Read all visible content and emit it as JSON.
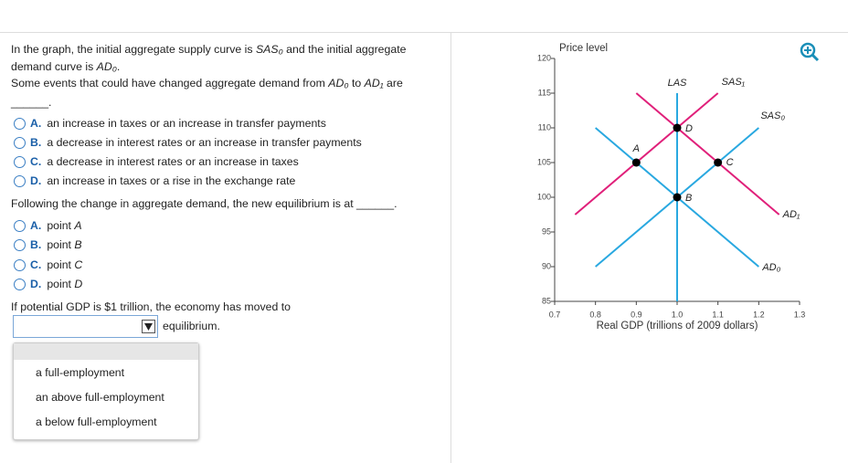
{
  "question1": {
    "intro": [
      "In the graph, the initial aggregate supply curve is ",
      "SAS₀",
      " and the initial aggregate demand curve is ",
      "AD₀",
      "."
    ],
    "stem": [
      "Some events that could have changed aggregate demand from ",
      "AD₀",
      " to ",
      "AD₁",
      " are"
    ],
    "blank": "______.",
    "options": [
      {
        "letter": "A.",
        "text": [
          "an increase in taxes or an increase in transfer payments"
        ]
      },
      {
        "letter": "B.",
        "text": [
          "a decrease in interest rates or an increase in transfer payments"
        ]
      },
      {
        "letter": "C.",
        "text": [
          "a decrease in interest rates or an increase in taxes"
        ]
      },
      {
        "letter": "D.",
        "text": [
          "an increase in taxes or a rise in the exchange rate"
        ]
      }
    ]
  },
  "question2": {
    "stem": [
      "Following the change in aggregate demand, the new equilibrium is at "
    ],
    "blank": "______.",
    "options": [
      {
        "letter": "A.",
        "text": [
          "point ",
          "A"
        ]
      },
      {
        "letter": "B.",
        "text": [
          "point ",
          "B"
        ]
      },
      {
        "letter": "C.",
        "text": [
          "point ",
          "C"
        ]
      },
      {
        "letter": "D.",
        "text": [
          "point ",
          "D"
        ]
      }
    ]
  },
  "question3": {
    "stem": "If potential GDP is $1 trillion, the economy has moved to",
    "suffix": "equilibrium.",
    "dropdown_options": [
      "a full-employment",
      "an above full-employment",
      "a below full-employment"
    ]
  },
  "chart_data": {
    "type": "line",
    "ylabel": "Price level",
    "xlabel": "Real GDP (trillions of 2009 dollars)",
    "xlim": [
      0.7,
      1.3
    ],
    "ylim": [
      85,
      120
    ],
    "xticks": [
      0.7,
      0.8,
      0.9,
      {
        "value": 1.0,
        "label": "1.0"
      },
      1.1,
      1.2,
      1.3
    ],
    "yticks": [
      85,
      90,
      95,
      100,
      105,
      110,
      115,
      120
    ],
    "series": [
      {
        "name": "LAS",
        "color": "#29a8e0",
        "x": [
          1.0,
          1.0
        ],
        "values": [
          85,
          115
        ]
      },
      {
        "name": "SAS₁",
        "color": "#e0207a",
        "x": [
          0.75,
          1.1
        ],
        "values": [
          97.5,
          115
        ]
      },
      {
        "name": "SAS₀",
        "color": "#29a8e0",
        "x": [
          0.8,
          1.2
        ],
        "values": [
          90,
          110
        ]
      },
      {
        "name": "AD₁",
        "color": "#e0207a",
        "x": [
          0.9,
          1.25
        ],
        "values": [
          115,
          97.5
        ]
      },
      {
        "name": "AD₀",
        "color": "#29a8e0",
        "x": [
          0.8,
          1.2
        ],
        "values": [
          110,
          90
        ]
      }
    ],
    "points": {
      "labels": [
        "A",
        "B",
        "C",
        "D"
      ],
      "x": [
        0.9,
        1.0,
        1.1,
        1.0
      ],
      "values": [
        105,
        100,
        105,
        110
      ],
      "color": "#000000"
    }
  }
}
